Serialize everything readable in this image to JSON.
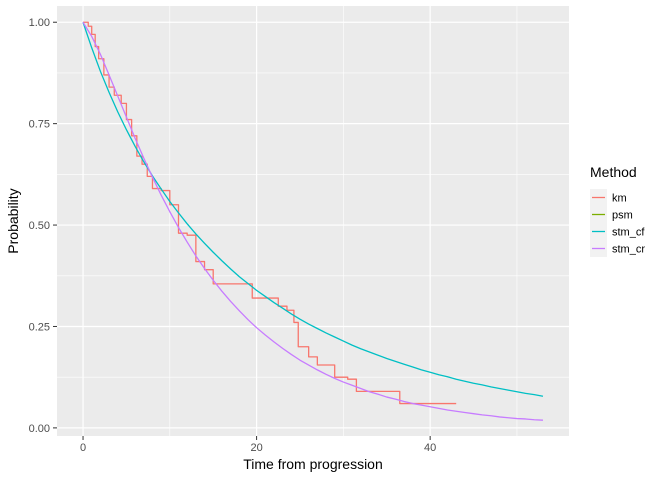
{
  "chart_data": {
    "type": "line",
    "xlabel": "Time from progression",
    "ylabel": "Probability",
    "xlim": [
      -3,
      56
    ],
    "ylim": [
      -0.02,
      1.04
    ],
    "x_ticks": [
      0,
      20,
      40
    ],
    "x_tick_labels": [
      "0",
      "20",
      "40"
    ],
    "y_ticks": [
      0,
      0.25,
      0.5,
      0.75,
      1
    ],
    "y_tick_labels": [
      "0.00",
      "0.25",
      "0.50",
      "0.75",
      "1.00"
    ],
    "grid": true,
    "legend": {
      "title": "Method",
      "placement": "right",
      "entries": [
        "km",
        "psm",
        "stm_cf",
        "stm_cr"
      ]
    },
    "series": [
      {
        "name": "km",
        "color": "#F8766D",
        "step": true,
        "x": [
          0,
          0.6,
          1.0,
          1.4,
          1.8,
          2.4,
          3.0,
          3.6,
          4.4,
          5.0,
          5.6,
          6.2,
          6.8,
          7.4,
          8.0,
          9.0,
          10.0,
          11.0,
          12.0,
          13.0,
          14.0,
          15.0,
          16.0,
          17.0,
          19.5,
          22.5,
          23.5,
          24.3,
          24.8,
          26.0,
          27.0,
          29.0,
          30.5,
          31.5,
          35.5,
          36.5,
          41.0,
          43.0
        ],
        "y": [
          1.0,
          0.99,
          0.97,
          0.94,
          0.91,
          0.87,
          0.84,
          0.82,
          0.8,
          0.76,
          0.72,
          0.67,
          0.65,
          0.62,
          0.59,
          0.585,
          0.55,
          0.48,
          0.475,
          0.41,
          0.39,
          0.355,
          0.355,
          0.355,
          0.32,
          0.3,
          0.29,
          0.26,
          0.2,
          0.175,
          0.155,
          0.125,
          0.12,
          0.09,
          0.09,
          0.06,
          0.06,
          0.06
        ]
      },
      {
        "name": "psm",
        "color": "#7CAE00",
        "step": false,
        "x": [],
        "y": []
      },
      {
        "name": "stm_cf",
        "color": "#00BFC4",
        "step": false,
        "x": [
          0,
          1,
          2,
          3,
          4,
          5,
          6,
          7,
          8,
          9,
          10,
          11,
          12,
          13,
          14,
          15,
          16,
          17,
          18,
          19,
          20,
          21,
          22,
          23,
          24,
          25,
          26,
          27,
          28,
          29,
          30,
          31,
          32,
          33,
          34,
          35,
          36,
          37,
          38,
          39,
          40,
          41,
          42,
          43,
          44,
          45,
          46,
          47,
          48,
          49,
          50,
          51,
          52,
          53
        ],
        "y": [
          1.0,
          0.937,
          0.879,
          0.827,
          0.779,
          0.735,
          0.694,
          0.656,
          0.621,
          0.589,
          0.558,
          0.53,
          0.503,
          0.478,
          0.455,
          0.433,
          0.412,
          0.392,
          0.373,
          0.356,
          0.339,
          0.324,
          0.309,
          0.295,
          0.281,
          0.268,
          0.256,
          0.245,
          0.234,
          0.224,
          0.214,
          0.204,
          0.195,
          0.187,
          0.179,
          0.171,
          0.164,
          0.157,
          0.15,
          0.143,
          0.137,
          0.131,
          0.126,
          0.12,
          0.115,
          0.11,
          0.106,
          0.101,
          0.097,
          0.093,
          0.089,
          0.085,
          0.082,
          0.078
        ]
      },
      {
        "name": "stm_cr",
        "color": "#C77CFF",
        "step": false,
        "x": [
          0,
          1,
          2,
          3,
          4,
          5,
          6,
          7,
          8,
          9,
          10,
          11,
          12,
          13,
          14,
          15,
          16,
          17,
          18,
          19,
          20,
          21,
          22,
          23,
          24,
          25,
          26,
          27,
          28,
          29,
          30,
          31,
          32,
          33,
          34,
          35,
          36,
          37,
          38,
          39,
          40,
          41,
          42,
          43,
          44,
          45,
          46,
          47,
          48,
          49,
          50,
          51,
          52,
          53
        ],
        "y": [
          1.0,
          0.965,
          0.921,
          0.87,
          0.818,
          0.766,
          0.714,
          0.665,
          0.618,
          0.574,
          0.533,
          0.494,
          0.458,
          0.424,
          0.393,
          0.364,
          0.337,
          0.312,
          0.289,
          0.267,
          0.247,
          0.229,
          0.212,
          0.196,
          0.181,
          0.167,
          0.155,
          0.143,
          0.132,
          0.122,
          0.113,
          0.105,
          0.097,
          0.089,
          0.083,
          0.076,
          0.071,
          0.065,
          0.06,
          0.056,
          0.052,
          0.048,
          0.044,
          0.041,
          0.038,
          0.035,
          0.032,
          0.03,
          0.027,
          0.025,
          0.023,
          0.022,
          0.02,
          0.019
        ]
      }
    ]
  }
}
